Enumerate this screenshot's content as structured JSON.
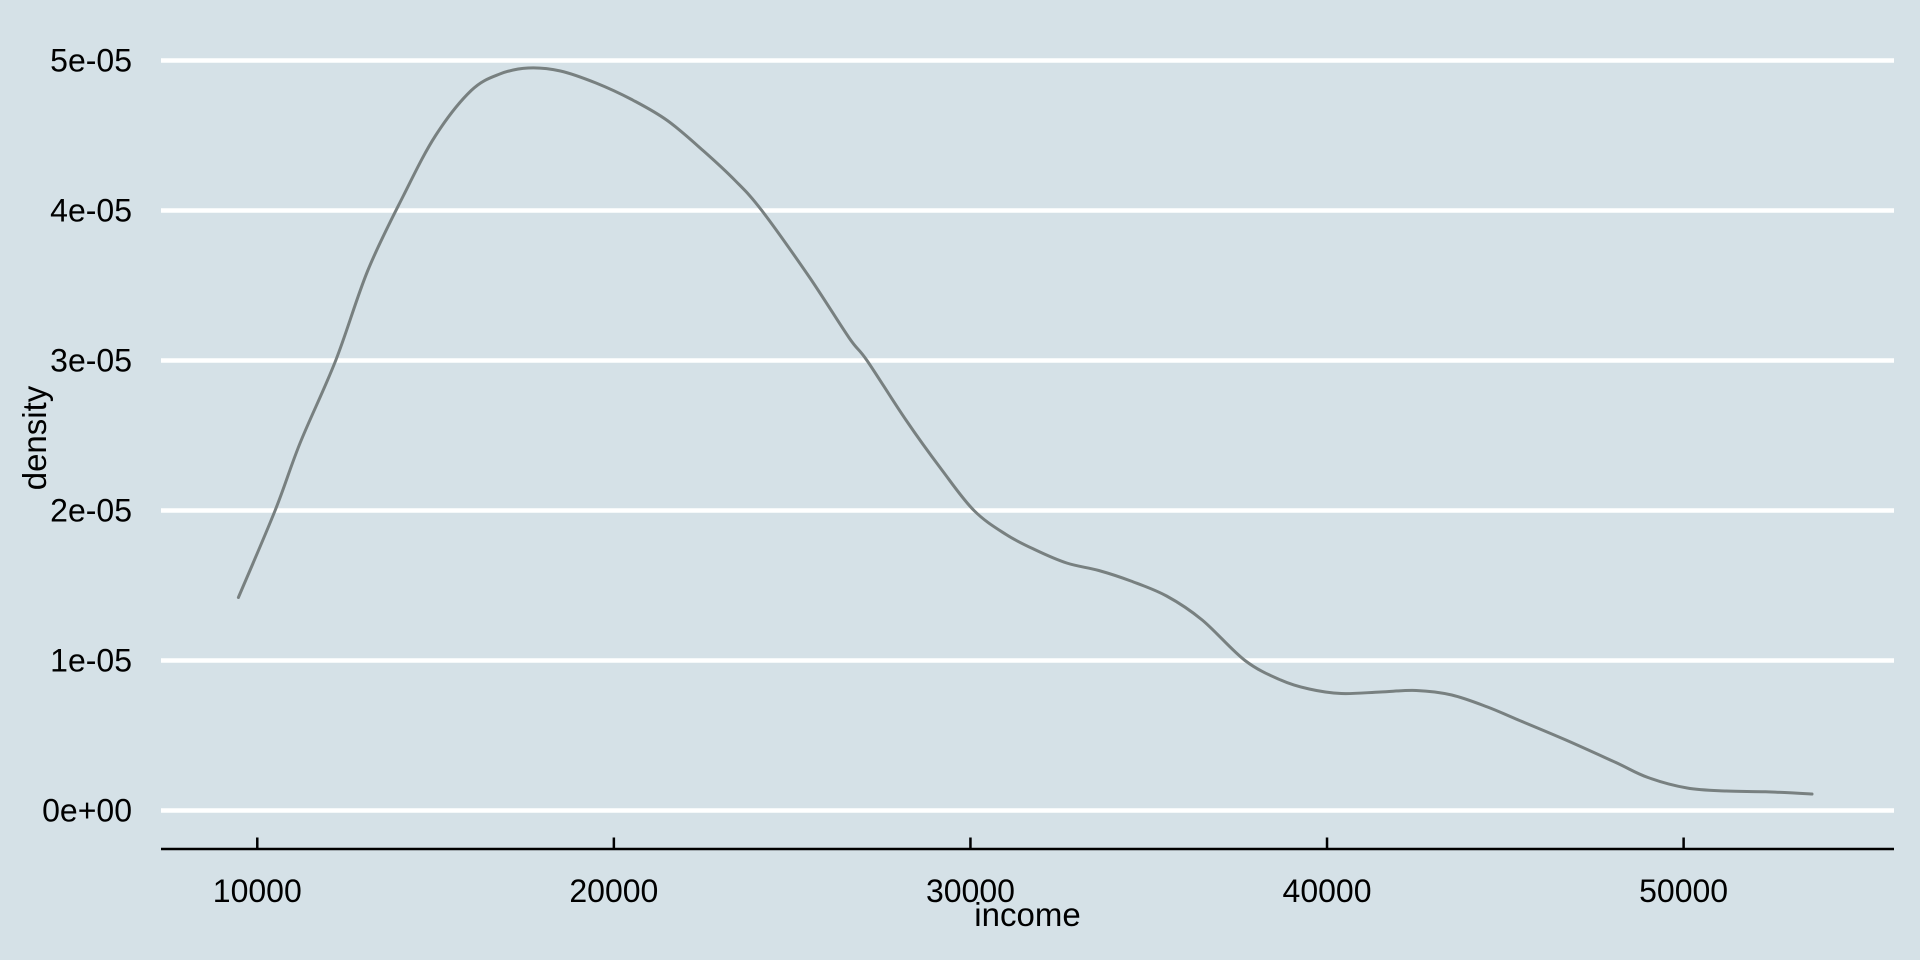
{
  "chart_data": {
    "type": "line",
    "subtype": "density-curve",
    "title": "",
    "xlabel": "income",
    "ylabel": "density",
    "legend": "none",
    "grid": "horizontal-only",
    "x_ticks": [
      {
        "value": 10000,
        "label": "10000"
      },
      {
        "value": 20000,
        "label": "20000"
      },
      {
        "value": 30000,
        "label": "30000"
      },
      {
        "value": 40000,
        "label": "40000"
      },
      {
        "value": 50000,
        "label": "50000"
      }
    ],
    "y_ticks": [
      {
        "value": 0.0,
        "label": "0e+00"
      },
      {
        "value": 1e-05,
        "label": "1e-05"
      },
      {
        "value": 2e-05,
        "label": "2e-05"
      },
      {
        "value": 3e-05,
        "label": "3e-05"
      },
      {
        "value": 4e-05,
        "label": "4e-05"
      },
      {
        "value": 5e-05,
        "label": "5e-05"
      }
    ],
    "x_range": [
      7300,
      55900
    ],
    "y_range": [
      0,
      5.4e-05
    ],
    "series": [
      {
        "name": "density",
        "points": [
          [
            9470,
            1.42e-05
          ],
          [
            10500,
            2e-05
          ],
          [
            11200,
            2.45e-05
          ],
          [
            12200,
            3e-05
          ],
          [
            13100,
            3.6e-05
          ],
          [
            14100,
            4.1e-05
          ],
          [
            15000,
            4.5e-05
          ],
          [
            16000,
            4.8e-05
          ],
          [
            16800,
            4.91e-05
          ],
          [
            17600,
            4.95e-05
          ],
          [
            18500,
            4.93e-05
          ],
          [
            19500,
            4.85e-05
          ],
          [
            20500,
            4.74e-05
          ],
          [
            21500,
            4.6e-05
          ],
          [
            22500,
            4.4e-05
          ],
          [
            23400,
            4.2e-05
          ],
          [
            24150,
            4e-05
          ],
          [
            25500,
            3.55e-05
          ],
          [
            26600,
            3.15e-05
          ],
          [
            27100,
            3e-05
          ],
          [
            28200,
            2.6e-05
          ],
          [
            29200,
            2.27e-05
          ],
          [
            30100,
            2e-05
          ],
          [
            31000,
            1.84e-05
          ],
          [
            31800,
            1.74e-05
          ],
          [
            32700,
            1.65e-05
          ],
          [
            33600,
            1.6e-05
          ],
          [
            34500,
            1.53e-05
          ],
          [
            35500,
            1.43e-05
          ],
          [
            36500,
            1.27e-05
          ],
          [
            37700,
            1e-05
          ],
          [
            38700,
            8.7e-06
          ],
          [
            39500,
            8.1e-06
          ],
          [
            40400,
            7.8e-06
          ],
          [
            41500,
            7.9e-06
          ],
          [
            42500,
            8e-06
          ],
          [
            43500,
            7.7e-06
          ],
          [
            44500,
            6.9e-06
          ],
          [
            45300,
            6.1e-06
          ],
          [
            46700,
            4.7e-06
          ],
          [
            48100,
            3.2e-06
          ],
          [
            49000,
            2.2e-06
          ],
          [
            50100,
            1.5e-06
          ],
          [
            51200,
            1.3e-06
          ],
          [
            52300,
            1.25e-06
          ],
          [
            53600,
            1.1e-06
          ]
        ]
      }
    ],
    "colors": {
      "background": "#d5e1e7",
      "gridline": "#ffffff",
      "curve": "#788080",
      "axis_line": "#000000",
      "text": "#000000"
    }
  }
}
